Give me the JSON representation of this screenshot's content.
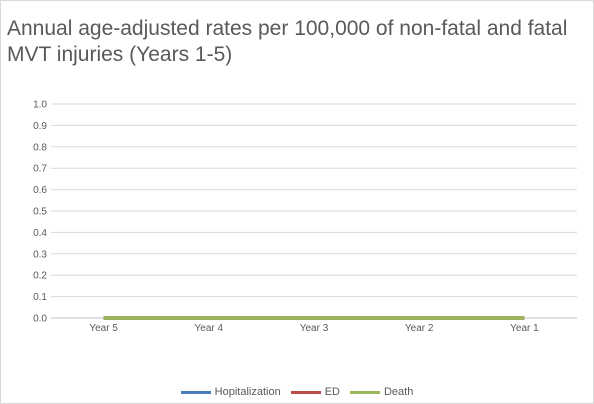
{
  "chart_data": {
    "type": "line",
    "title": "Annual age-adjusted rates per 100,000 of non-fatal and fatal MVT injuries (Years 1-5)",
    "categories": [
      "Year 5",
      "Year 4",
      "Year 3",
      "Year 2",
      "Year 1"
    ],
    "y_ticks": [
      "0.0",
      "0.1",
      "0.2",
      "0.3",
      "0.4",
      "0.5",
      "0.6",
      "0.7",
      "0.8",
      "0.9",
      "1.0"
    ],
    "ylim": [
      0,
      1.0
    ],
    "grid": true,
    "legend_position": "bottom",
    "series": [
      {
        "name": "Hopitalization",
        "color": "#4a7ebb",
        "values": [
          0,
          0,
          0,
          0,
          0
        ]
      },
      {
        "name": "ED",
        "color": "#be4b48",
        "values": [
          0,
          0,
          0,
          0,
          0
        ]
      },
      {
        "name": "Death",
        "color": "#98b954",
        "values": [
          0,
          0,
          0,
          0,
          0
        ]
      }
    ]
  }
}
